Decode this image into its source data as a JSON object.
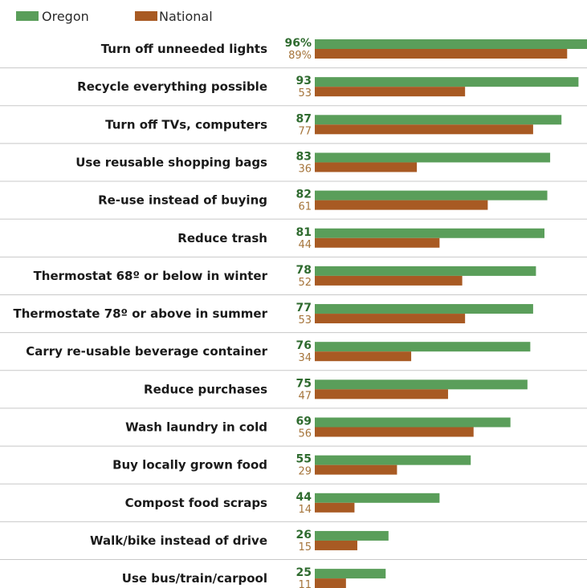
{
  "chart_data": {
    "type": "bar",
    "orientation": "horizontal",
    "categories": [
      "Turn off unneeded lights",
      "Recycle everything possible",
      "Turn off TVs, computers",
      "Use reusable shopping bags",
      "Re-use instead of buying",
      "Reduce trash",
      "Thermostat 68º or below in winter",
      "Thermostate 78º or above in summer",
      "Carry re-usable beverage container",
      "Reduce purchases",
      "Wash laundry in cold",
      "Buy locally grown food",
      "Compost food scraps",
      "Walk/bike instead of drive",
      "Use bus/train/carpool"
    ],
    "series": [
      {
        "name": "Oregon",
        "color": "#5a9e5a",
        "value_color": "#2f6b2f",
        "values": [
          96,
          93,
          87,
          83,
          82,
          81,
          78,
          77,
          76,
          75,
          69,
          55,
          44,
          26,
          25
        ],
        "labels": [
          "96%",
          "93",
          "87",
          "83",
          "82",
          "81",
          "78",
          "77",
          "76",
          "75",
          "69",
          "55",
          "44",
          "26",
          "25"
        ]
      },
      {
        "name": "National",
        "color": "#a85a23",
        "value_color": "#a5743a",
        "values": [
          89,
          53,
          77,
          36,
          61,
          44,
          52,
          53,
          34,
          47,
          56,
          29,
          14,
          15,
          11
        ],
        "labels": [
          "89%",
          "53",
          "77",
          "36",
          "61",
          "44",
          "52",
          "53",
          "34",
          "47",
          "56",
          "29",
          "14",
          "15",
          "11"
        ]
      }
    ],
    "xlim": [
      0,
      96
    ],
    "legend_position": "top-left",
    "row_dividers": true,
    "divider_color": "#c8c8c8",
    "title": "",
    "xlabel": "",
    "ylabel": ""
  }
}
